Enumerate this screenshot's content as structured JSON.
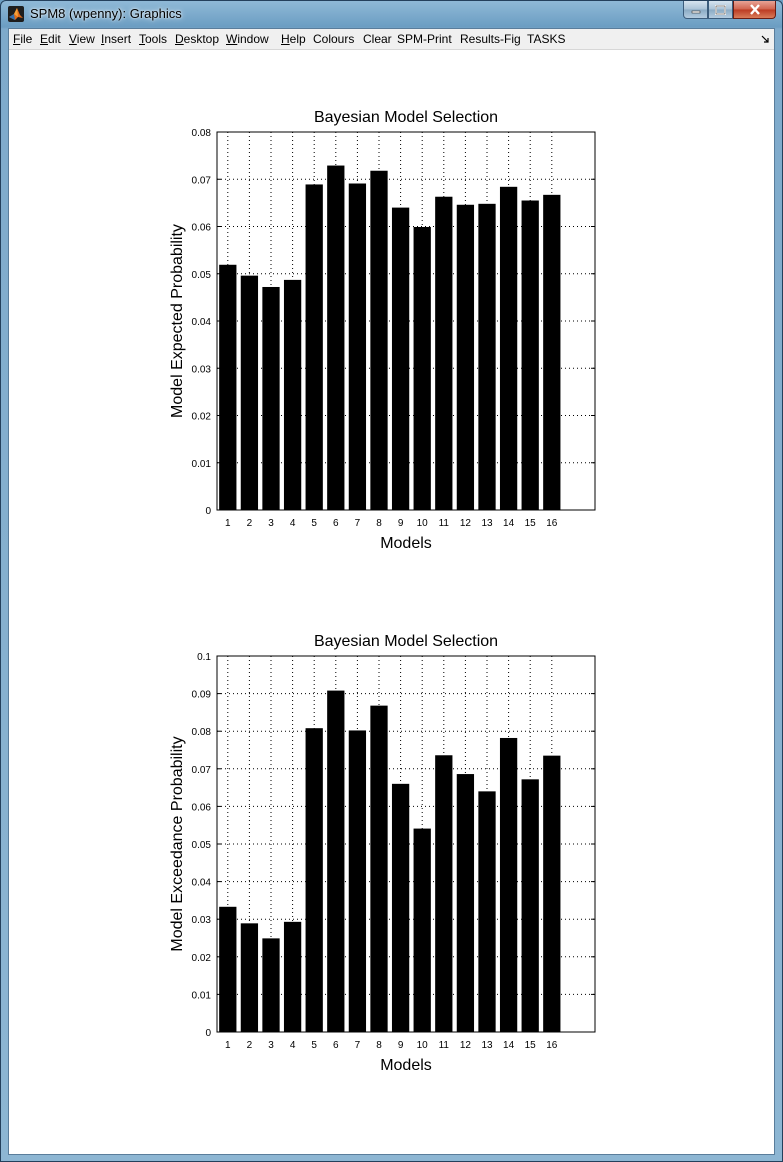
{
  "window": {
    "title": "SPM8 (wpenny): Graphics"
  },
  "menu": [
    {
      "name": "menu-file",
      "label": "File",
      "underline": true
    },
    {
      "name": "menu-edit",
      "label": "Edit",
      "underline": true
    },
    {
      "name": "menu-view",
      "label": "View",
      "underline": true
    },
    {
      "name": "menu-insert",
      "label": "Insert",
      "underline": true
    },
    {
      "name": "menu-tools",
      "label": "Tools",
      "underline": true
    },
    {
      "name": "menu-desktop",
      "label": "Desktop",
      "underline": true
    },
    {
      "name": "menu-window",
      "label": "Window",
      "underline": true
    },
    {
      "name": "menu-help",
      "label": "Help",
      "underline": true
    },
    {
      "name": "menu-colours",
      "label": "Colours",
      "underline": false
    },
    {
      "name": "menu-clear",
      "label": "Clear",
      "underline": false
    },
    {
      "name": "menu-spm-print",
      "label": "SPM-Print",
      "underline": false
    },
    {
      "name": "menu-results-fig",
      "label": "Results-Fig",
      "underline": false
    },
    {
      "name": "menu-tasks",
      "label": "TASKS",
      "underline": false
    }
  ],
  "colors": {
    "bar": "#000000",
    "grid": "#000000",
    "background": "#ffffff"
  },
  "chart_data": [
    {
      "type": "bar",
      "title": "Bayesian Model Selection",
      "xlabel": "Models",
      "ylabel": "Model Expected Probability",
      "categories": [
        "1",
        "2",
        "3",
        "4",
        "5",
        "6",
        "7",
        "8",
        "9",
        "10",
        "11",
        "12",
        "13",
        "14",
        "15",
        "16"
      ],
      "values": [
        0.0519,
        0.0496,
        0.0472,
        0.0487,
        0.0689,
        0.0729,
        0.0691,
        0.0718,
        0.064,
        0.0599,
        0.0663,
        0.0646,
        0.0648,
        0.0684,
        0.0655,
        0.0667
      ],
      "ylim": [
        0,
        0.08
      ],
      "xlim": [
        0.5,
        18.0
      ],
      "yticks": [
        0,
        0.01,
        0.02,
        0.03,
        0.04,
        0.05,
        0.06,
        0.07,
        0.08
      ],
      "ytick_labels": [
        "0",
        "0.01",
        "0.02",
        "0.03",
        "0.04",
        "0.05",
        "0.06",
        "0.07",
        "0.08"
      ],
      "grid": true
    },
    {
      "type": "bar",
      "title": "Bayesian Model Selection",
      "xlabel": "Models",
      "ylabel": "Model Exceedance Probability",
      "categories": [
        "1",
        "2",
        "3",
        "4",
        "5",
        "6",
        "7",
        "8",
        "9",
        "10",
        "11",
        "12",
        "13",
        "14",
        "15",
        "16"
      ],
      "values": [
        0.0333,
        0.0289,
        0.0249,
        0.0293,
        0.0808,
        0.0908,
        0.0802,
        0.0868,
        0.066,
        0.0541,
        0.0736,
        0.0686,
        0.064,
        0.0782,
        0.0672,
        0.0735
      ],
      "ylim": [
        0,
        0.1
      ],
      "xlim": [
        0.5,
        18.0
      ],
      "yticks": [
        0,
        0.01,
        0.02,
        0.03,
        0.04,
        0.05,
        0.06,
        0.07,
        0.08,
        0.09,
        0.1
      ],
      "ytick_labels": [
        "0",
        "0.01",
        "0.02",
        "0.03",
        "0.04",
        "0.05",
        "0.06",
        "0.07",
        "0.08",
        "0.09",
        "0.1"
      ],
      "grid": true
    }
  ]
}
